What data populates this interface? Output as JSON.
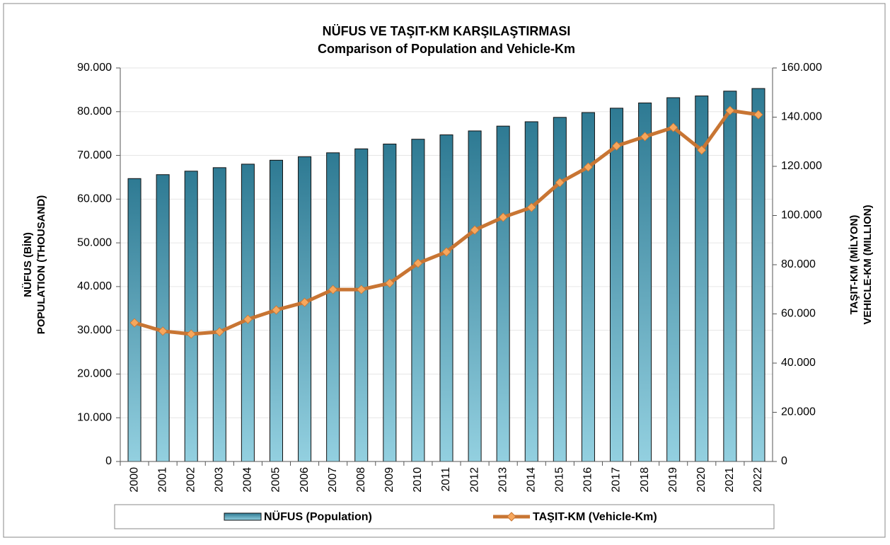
{
  "chart_data": {
    "type": "bar",
    "title": "NÜFUS VE TAŞIT-KM KARŞILAŞTIRMASI",
    "subtitle": "Comparison of Population and Vehicle-Km",
    "ylabel": [
      "NÜFUS (BİN)",
      "POPULATION (THOUSAND)"
    ],
    "y2label": [
      "TAŞIT-KM (MİLYON)",
      "VEHICLE-KM (MILLION)"
    ],
    "categories": [
      "2000",
      "2001",
      "2002",
      "2003",
      "2004",
      "2005",
      "2006",
      "2007",
      "2008",
      "2009",
      "2010",
      "2011",
      "2012",
      "2013",
      "2014",
      "2015",
      "2016",
      "2017",
      "2018",
      "2019",
      "2020",
      "2021",
      "2022"
    ],
    "series": [
      {
        "name": "NÜFUS (Population)",
        "type": "bar",
        "color": "#2e7a93",
        "color_light": "#93d0e0",
        "values": [
          64700,
          65600,
          66400,
          67200,
          68000,
          68900,
          69700,
          70600,
          71500,
          72600,
          73700,
          74700,
          75600,
          76700,
          77700,
          78700,
          79800,
          80800,
          82000,
          83200,
          83600,
          84700,
          85300
        ]
      },
      {
        "name": "TAŞIT-KM (Vehicle-Km)",
        "type": "line",
        "axis": "y2",
        "color": "#c87533",
        "marker_color": "#f7a75c",
        "values": [
          56400,
          53000,
          51800,
          52700,
          57800,
          61600,
          64700,
          69900,
          69900,
          72500,
          80600,
          85200,
          94100,
          99300,
          103300,
          113400,
          119700,
          128300,
          132100,
          135800,
          126600,
          142700,
          141000
        ]
      }
    ],
    "ylim": [
      0,
      90000
    ],
    "yticks": [
      0,
      {
        "value": 10000,
        "label": "10.000"
      },
      {
        "value": 20000,
        "label": "20.000"
      },
      {
        "value": 30000,
        "label": "30.000"
      },
      {
        "value": 40000,
        "label": "40.000"
      },
      {
        "value": 50000,
        "label": "50.000"
      },
      {
        "value": 60000,
        "label": "60.000"
      },
      {
        "value": 70000,
        "label": "70.000"
      },
      {
        "value": 80000,
        "label": "80.000"
      },
      {
        "value": 90000,
        "label": "90.000"
      }
    ],
    "y2lim": [
      0,
      160000
    ],
    "y2ticks": [
      0,
      {
        "value": 20000,
        "label": "20.000"
      },
      {
        "value": 40000,
        "label": "40.000"
      },
      {
        "value": 60000,
        "label": "60.000"
      },
      {
        "value": 80000,
        "label": "80.000"
      },
      {
        "value": 100000,
        "label": "100.000"
      },
      {
        "value": 120000,
        "label": "120.000"
      },
      {
        "value": 140000,
        "label": "140.000"
      },
      {
        "value": 160000,
        "label": "160.000"
      }
    ],
    "grid": true,
    "legend": "bottom"
  }
}
